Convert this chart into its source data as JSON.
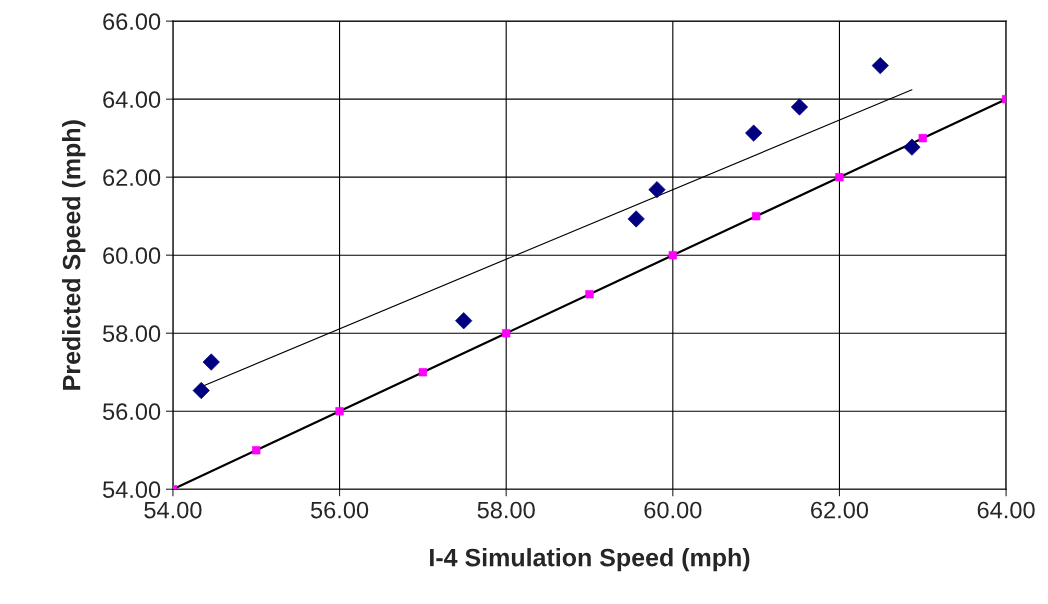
{
  "chart_data": {
    "type": "scatter",
    "xlabel": "I-4 Simulation Speed (mph)",
    "ylabel": "Predicted Speed (mph)",
    "xlim": [
      54,
      64
    ],
    "ylim": [
      54,
      66
    ],
    "xticks": [
      {
        "value": 54,
        "label": "54.00"
      },
      {
        "value": 56,
        "label": "56.00"
      },
      {
        "value": 58,
        "label": "58.00"
      },
      {
        "value": 60,
        "label": "60.00"
      },
      {
        "value": 62,
        "label": "62.00"
      },
      {
        "value": 64,
        "label": "64.00"
      }
    ],
    "yticks": [
      {
        "value": 54,
        "label": "54.00"
      },
      {
        "value": 56,
        "label": "56.00"
      },
      {
        "value": 58,
        "label": "58.00"
      },
      {
        "value": 60,
        "label": "60.00"
      },
      {
        "value": 62,
        "label": "62.00"
      },
      {
        "value": 64,
        "label": "64.00"
      },
      {
        "value": 66,
        "label": "66.00"
      }
    ],
    "grid": true,
    "series": [
      {
        "type": "line",
        "color": "#000000",
        "marker": "none",
        "line_style": "solid",
        "x": [
          54,
          55,
          56,
          57,
          58,
          59,
          60,
          61,
          62,
          63,
          64
        ],
        "values": [
          54,
          55,
          56,
          57,
          58,
          59,
          60,
          61,
          62,
          63,
          64
        ]
      },
      {
        "color": "#ff00ff",
        "marker": "square",
        "x": [
          54,
          55,
          56,
          57,
          58,
          59,
          60,
          61,
          62,
          63,
          64
        ],
        "values": [
          54,
          55,
          56,
          57,
          58,
          59,
          60,
          61,
          62,
          63,
          64
        ]
      },
      {
        "type": "line",
        "color": "#000000",
        "marker": "none",
        "line_style": "solid",
        "x": [
          54.34,
          62.87
        ],
        "values": [
          56.63,
          64.24
        ]
      },
      {
        "color": "#000080",
        "marker": "diamond",
        "x": [
          54.34,
          54.46,
          57.49,
          59.56,
          59.81,
          60.97,
          61.52,
          62.49,
          62.87
        ],
        "values": [
          56.53,
          57.26,
          58.32,
          60.93,
          61.68,
          63.13,
          63.8,
          64.86,
          62.77
        ]
      }
    ]
  }
}
